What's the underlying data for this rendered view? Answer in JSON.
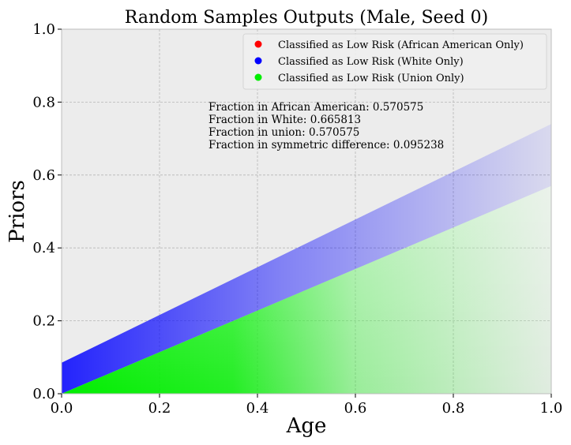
{
  "chart_data": {
    "type": "scatter",
    "title": "Random Samples Outputs (Male, Seed 0)",
    "xlabel": "Age",
    "ylabel": "Priors",
    "xlim": [
      0.0,
      1.0
    ],
    "ylim": [
      0.0,
      1.0
    ],
    "xticks": [
      "0.0",
      "0.2",
      "0.4",
      "0.6",
      "0.8",
      "1.0"
    ],
    "yticks": [
      "0.0",
      "0.2",
      "0.4",
      "0.6",
      "0.8",
      "1.0"
    ],
    "grid": true,
    "background": "#ececec",
    "legend_placement": "top-right",
    "series": [
      {
        "name": "Classified as Low Risk (African American Only)",
        "color": "#ff0000",
        "region": null
      },
      {
        "name": "Classified as Low Risk (White Only)",
        "color": "#0000ff",
        "region": {
          "lower_intercept": 0.0,
          "lower_slope": 0.57,
          "upper_intercept": 0.085,
          "upper_slope": 0.655
        }
      },
      {
        "name": "Classified as Low Risk (Union Only)",
        "color": "#00ee00",
        "region": {
          "lower_intercept": 0.0,
          "lower_slope": 0.0,
          "upper_intercept": 0.0,
          "upper_slope": 0.57
        }
      }
    ],
    "annotations": [
      "Fraction in African American: 0.570575",
      "Fraction in White: 0.665813",
      "Fraction in union: 0.570575",
      "Fraction in symmetric difference: 0.095238"
    ]
  }
}
